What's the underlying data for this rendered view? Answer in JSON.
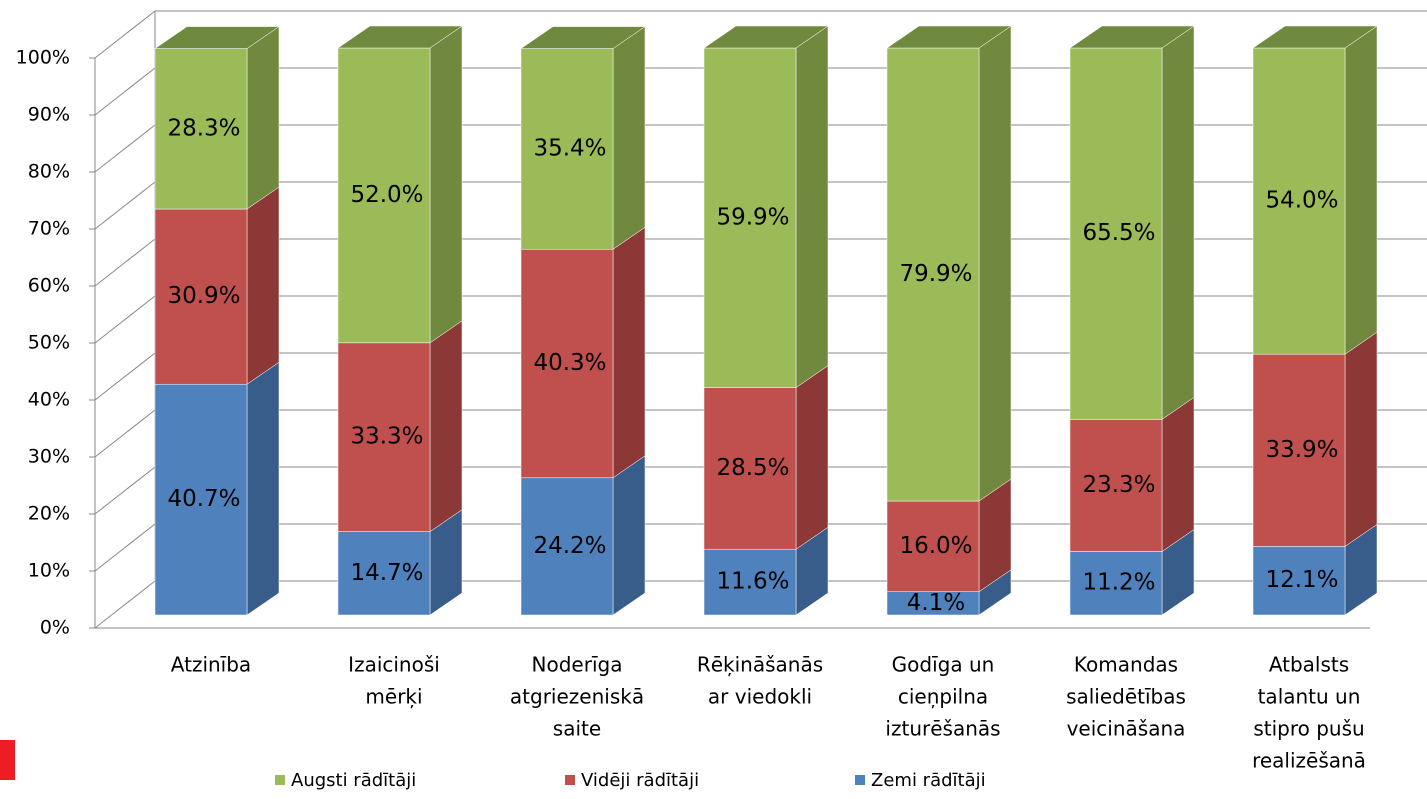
{
  "chart_data": {
    "type": "bar3d_stacked",
    "categories": [
      [
        "Atzinība"
      ],
      [
        "Izaicinoši",
        "mērķi"
      ],
      [
        "Noderīga",
        "atgriezeniskā",
        "saite"
      ],
      [
        "Rēķināšanās",
        "ar viedokli"
      ],
      [
        "Godīga un",
        "cieņpilna",
        "izturēšanās"
      ],
      [
        "Komandas",
        "saliedētības",
        "veicināšana"
      ],
      [
        "Atbalsts",
        "talantu un",
        "stipro pušu",
        "realizēšanā"
      ]
    ],
    "series": [
      {
        "name": "Zemi rādītāji",
        "color": "#4f81bd",
        "side": "#385d8a",
        "values": [
          40.7,
          14.7,
          24.2,
          11.6,
          4.1,
          11.2,
          12.1
        ],
        "value_labels": [
          "40.7%",
          "14.7%",
          "24.2%",
          "11.6%",
          "4.1%",
          "11.2%",
          "12.1%"
        ]
      },
      {
        "name": "Vidēji rādītāji",
        "color": "#c0504d",
        "side": "#8c3836",
        "values": [
          30.9,
          33.3,
          40.3,
          28.5,
          16.0,
          23.3,
          33.9
        ],
        "value_labels": [
          "30.9%",
          "33.3%",
          "40.3%",
          "28.5%",
          "16.0%",
          "23.3%",
          "33.9%"
        ]
      },
      {
        "name": "Augsti rādītāji",
        "color": "#9bbb59",
        "side": "#71893f",
        "values": [
          28.3,
          52.0,
          35.4,
          59.9,
          79.9,
          65.5,
          54.0
        ],
        "value_labels": [
          "28.3%",
          "52.0%",
          "35.4%",
          "59.9%",
          "79.9%",
          "65.5%",
          "54.0%"
        ]
      }
    ],
    "top_color": "#6f8a3e",
    "ylim": [
      0,
      100
    ],
    "yticks": [
      {
        "value": 0,
        "label": "0%"
      },
      {
        "value": 10,
        "label": "10%"
      },
      {
        "value": 20,
        "label": "20%"
      },
      {
        "value": 30,
        "label": "30%"
      },
      {
        "value": 40,
        "label": "40%"
      },
      {
        "value": 50,
        "label": "50%"
      },
      {
        "value": 60,
        "label": "60%"
      },
      {
        "value": 70,
        "label": "70%"
      },
      {
        "value": 80,
        "label": "80%"
      },
      {
        "value": 90,
        "label": "90%"
      },
      {
        "value": 100,
        "label": "100%"
      }
    ],
    "grid": true
  }
}
